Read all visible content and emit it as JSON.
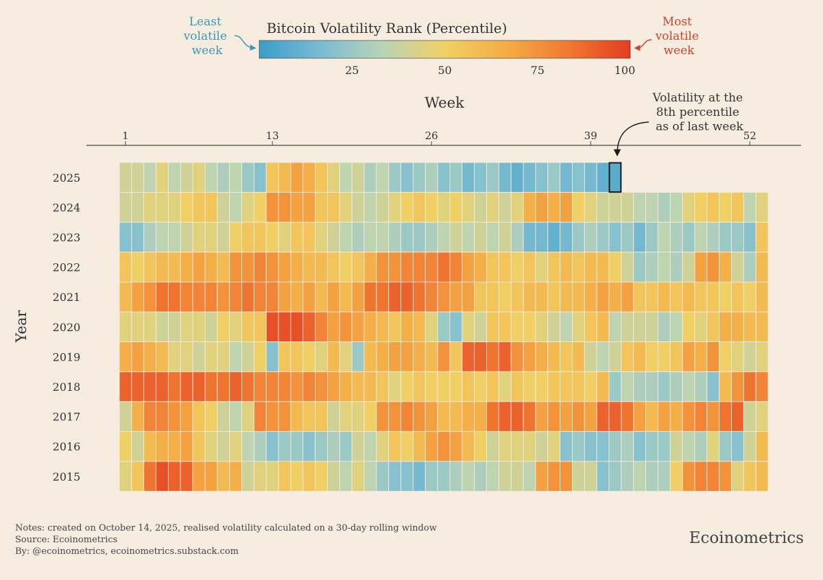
{
  "colors": {
    "background": "#f6ece0",
    "scale": [
      "#3d9cc9",
      "#7bbcd2",
      "#b9d3b8",
      "#f0d064",
      "#f4ab45",
      "#f07a32",
      "#e33d22"
    ],
    "least_label": "#3a9ab5",
    "most_label": "#d6402a",
    "current_week_outline": "#1a1a1a"
  },
  "chart_data": {
    "type": "heatmap",
    "title": "Bitcoin Volatility Rank (Percentile)",
    "xlabel": "Week",
    "ylabel": "Year",
    "x_ticks": [
      1,
      13,
      26,
      39,
      52
    ],
    "x_range": [
      1,
      53
    ],
    "colorbar": {
      "ticks": [
        25,
        50,
        75,
        100
      ],
      "range": [
        0,
        100
      ]
    },
    "legend_left": [
      "Least",
      "volatile",
      "week"
    ],
    "legend_right": [
      "Most",
      "volatile",
      "week"
    ],
    "annotation": [
      "Volatility at the",
      "8th percentile",
      "as of last week"
    ],
    "highlight": {
      "year": "2025",
      "week": 41,
      "value": 8
    },
    "years": [
      "2025",
      "2024",
      "2023",
      "2022",
      "2021",
      "2020",
      "2019",
      "2018",
      "2017",
      "2016",
      "2015"
    ],
    "values": [
      [
        40,
        40,
        35,
        45,
        35,
        40,
        45,
        35,
        30,
        35,
        25,
        20,
        55,
        60,
        70,
        65,
        55,
        45,
        35,
        40,
        30,
        35,
        25,
        20,
        25,
        30,
        20,
        25,
        15,
        20,
        25,
        15,
        10,
        15,
        20,
        25,
        15,
        20,
        15,
        10,
        8
      ],
      [
        40,
        40,
        45,
        45,
        45,
        50,
        55,
        55,
        40,
        35,
        45,
        50,
        75,
        75,
        70,
        70,
        55,
        55,
        45,
        40,
        35,
        40,
        45,
        50,
        55,
        50,
        45,
        50,
        45,
        40,
        45,
        40,
        45,
        65,
        70,
        65,
        70,
        50,
        45,
        40,
        40,
        40,
        35,
        35,
        30,
        35,
        45,
        50,
        55,
        50,
        55,
        35,
        45
      ],
      [
        20,
        20,
        30,
        35,
        35,
        40,
        45,
        45,
        40,
        50,
        55,
        55,
        50,
        45,
        55,
        55,
        45,
        40,
        35,
        30,
        35,
        35,
        30,
        25,
        25,
        30,
        35,
        40,
        35,
        40,
        35,
        40,
        30,
        15,
        15,
        10,
        15,
        25,
        30,
        25,
        20,
        25,
        15,
        25,
        35,
        30,
        25,
        35,
        30,
        25,
        25,
        20,
        55
      ],
      [
        55,
        50,
        55,
        60,
        60,
        65,
        70,
        65,
        60,
        75,
        75,
        80,
        75,
        70,
        65,
        60,
        60,
        55,
        50,
        55,
        65,
        75,
        75,
        80,
        80,
        80,
        85,
        80,
        70,
        65,
        55,
        55,
        50,
        55,
        45,
        55,
        60,
        55,
        60,
        60,
        50,
        40,
        25,
        30,
        35,
        30,
        40,
        70,
        75,
        65,
        40,
        30,
        60
      ],
      [
        60,
        70,
        75,
        85,
        85,
        80,
        80,
        80,
        75,
        80,
        85,
        80,
        80,
        70,
        65,
        70,
        60,
        70,
        60,
        70,
        85,
        85,
        90,
        90,
        85,
        80,
        75,
        70,
        70,
        55,
        55,
        50,
        55,
        60,
        60,
        55,
        60,
        60,
        65,
        70,
        65,
        70,
        55,
        55,
        60,
        55,
        60,
        55,
        55,
        50,
        55,
        50,
        60
      ],
      [
        45,
        45,
        45,
        40,
        40,
        45,
        45,
        40,
        50,
        45,
        55,
        55,
        95,
        95,
        95,
        90,
        80,
        70,
        75,
        70,
        65,
        60,
        55,
        65,
        60,
        45,
        25,
        20,
        45,
        40,
        55,
        55,
        50,
        50,
        45,
        40,
        35,
        45,
        55,
        60,
        35,
        40,
        40,
        40,
        30,
        35,
        50,
        45,
        55,
        65,
        65,
        60,
        60
      ],
      [
        65,
        70,
        65,
        60,
        45,
        45,
        40,
        45,
        45,
        35,
        40,
        50,
        20,
        55,
        55,
        50,
        45,
        60,
        45,
        25,
        60,
        65,
        70,
        70,
        65,
        60,
        75,
        55,
        90,
        90,
        85,
        90,
        75,
        70,
        65,
        60,
        55,
        60,
        40,
        35,
        40,
        55,
        60,
        50,
        50,
        55,
        70,
        65,
        75,
        50,
        45,
        40,
        45
      ],
      [
        90,
        90,
        90,
        90,
        85,
        90,
        90,
        85,
        85,
        90,
        85,
        80,
        80,
        80,
        75,
        80,
        75,
        70,
        65,
        60,
        60,
        55,
        45,
        50,
        55,
        50,
        50,
        50,
        55,
        50,
        55,
        45,
        55,
        50,
        50,
        55,
        55,
        55,
        50,
        60,
        25,
        35,
        30,
        30,
        25,
        30,
        35,
        30,
        20,
        60,
        75,
        85,
        80
      ],
      [
        40,
        65,
        80,
        80,
        75,
        70,
        55,
        50,
        40,
        35,
        45,
        80,
        75,
        75,
        60,
        55,
        55,
        40,
        45,
        45,
        50,
        75,
        75,
        80,
        75,
        70,
        60,
        60,
        65,
        65,
        85,
        90,
        90,
        85,
        70,
        75,
        70,
        75,
        70,
        90,
        90,
        85,
        70,
        60,
        70,
        65,
        75,
        80,
        75,
        85,
        90,
        40,
        45
      ],
      [
        50,
        40,
        60,
        65,
        65,
        70,
        55,
        45,
        40,
        45,
        35,
        30,
        20,
        25,
        25,
        20,
        25,
        30,
        25,
        40,
        35,
        45,
        55,
        50,
        60,
        70,
        75,
        70,
        60,
        50,
        40,
        45,
        45,
        45,
        40,
        45,
        20,
        25,
        20,
        20,
        25,
        30,
        20,
        25,
        25,
        40,
        35,
        30,
        45,
        25,
        20,
        40,
        60
      ],
      [
        45,
        55,
        85,
        95,
        90,
        90,
        70,
        70,
        60,
        65,
        40,
        45,
        45,
        55,
        50,
        55,
        50,
        40,
        35,
        45,
        35,
        25,
        20,
        20,
        15,
        25,
        25,
        30,
        35,
        30,
        35,
        40,
        40,
        35,
        70,
        75,
        75,
        40,
        40,
        20,
        25,
        30,
        35,
        30,
        30,
        50,
        75,
        80,
        80,
        75,
        45,
        55,
        60
      ]
    ]
  },
  "notes": {
    "line1": "Notes: created on October 14, 2025, realised volatility calculated on a 30-day rolling window",
    "line2": "Source: Ecoinometrics",
    "line3": "By: @ecoinometrics, ecoinometrics.substack.com"
  },
  "brand": "Ecoinometrics"
}
